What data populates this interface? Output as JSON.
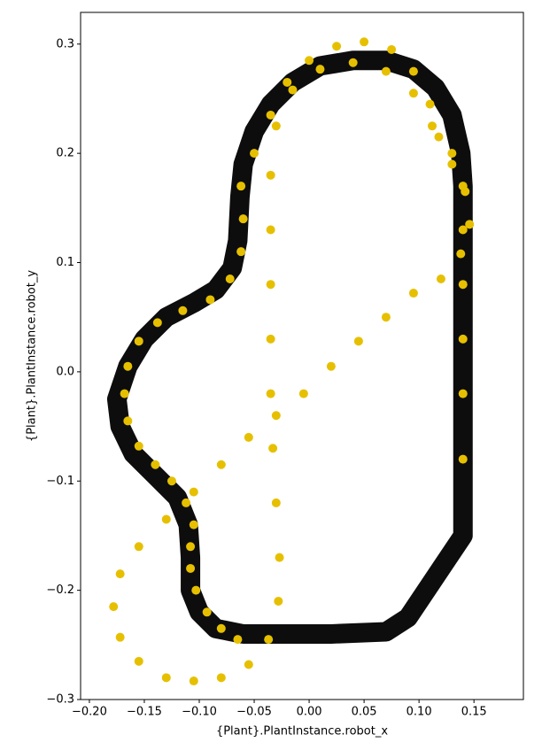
{
  "chart_data": {
    "type": "scatter",
    "xlabel": "{Plant}.PlantInstance.robot_x",
    "ylabel": "{Plant}.PlantInstance.robot_y",
    "xlim": [
      -0.208,
      0.195
    ],
    "ylim": [
      -0.3,
      0.329
    ],
    "xticks": [
      {
        "value": -0.2,
        "label": "−0.20"
      },
      {
        "value": -0.15,
        "label": "−0.15"
      },
      {
        "value": -0.1,
        "label": "−0.10"
      },
      {
        "value": -0.05,
        "label": "−0.05"
      },
      {
        "value": 0,
        "label": "0.00"
      },
      0.05,
      {
        "value": 0.1,
        "label": "0.10"
      },
      0.15
    ],
    "yticks": [
      {
        "value": -0.3,
        "label": "−0.3"
      },
      {
        "value": -0.2,
        "label": "−0.2"
      },
      {
        "value": -0.1,
        "label": "−0.1"
      },
      {
        "value": 0,
        "label": "0.0"
      },
      0.1,
      0.2,
      0.3
    ],
    "series": [
      {
        "type": "line",
        "color": "#000000",
        "x": [
          0.14,
          0.14,
          0.14,
          0.138,
          0.13,
          0.115,
          0.095,
          0.07,
          0.04,
          0.01,
          -0.015,
          -0.035,
          -0.05,
          -0.06,
          -0.063,
          -0.065,
          -0.07,
          -0.085,
          -0.105,
          -0.13,
          -0.15,
          -0.165,
          -0.175,
          -0.172,
          -0.16,
          -0.14,
          -0.12,
          -0.11,
          -0.108,
          -0.108,
          -0.1,
          -0.085,
          -0.06,
          -0.03,
          0.02,
          0.07,
          0.09,
          0.11,
          0.14
        ],
        "y": [
          -0.15,
          0.05,
          0.17,
          0.2,
          0.235,
          0.26,
          0.277,
          0.285,
          0.285,
          0.28,
          0.265,
          0.245,
          0.22,
          0.19,
          0.16,
          0.12,
          0.095,
          0.075,
          0.063,
          0.05,
          0.03,
          0.005,
          -0.025,
          -0.05,
          -0.075,
          -0.095,
          -0.115,
          -0.14,
          -0.17,
          -0.2,
          -0.22,
          -0.235,
          -0.24,
          -0.24,
          -0.24,
          -0.238,
          -0.225,
          -0.195,
          -0.15
        ]
      },
      {
        "type": "scatter",
        "color": "#e6c000",
        "x": [
          -0.065,
          -0.08,
          -0.093,
          -0.103,
          -0.108,
          -0.108,
          -0.105,
          -0.112,
          -0.125,
          -0.14,
          -0.155,
          -0.165,
          -0.168,
          -0.165,
          -0.155,
          -0.138,
          -0.115,
          -0.09,
          -0.072,
          -0.062,
          -0.06,
          -0.062,
          -0.05,
          -0.035,
          -0.02,
          0.0,
          0.025,
          0.05,
          0.075,
          0.095,
          0.11,
          0.118,
          0.13,
          0.142,
          0.146,
          0.138,
          0.12,
          0.095,
          0.07,
          0.045,
          0.02,
          -0.005,
          -0.03,
          -0.055,
          -0.08,
          -0.105,
          -0.13,
          -0.155,
          -0.172,
          -0.178,
          -0.172,
          -0.155,
          -0.13,
          -0.105,
          -0.08,
          -0.055,
          -0.037,
          -0.028,
          -0.027,
          -0.03,
          -0.033,
          -0.035,
          -0.035,
          -0.035,
          -0.035,
          -0.035,
          -0.03,
          -0.015,
          0.01,
          0.04,
          0.07,
          0.095,
          0.112,
          0.13,
          0.14,
          0.14,
          0.14,
          0.14,
          0.14,
          0.14
        ],
        "y": [
          -0.245,
          -0.235,
          -0.22,
          -0.2,
          -0.18,
          -0.16,
          -0.14,
          -0.12,
          -0.1,
          -0.085,
          -0.068,
          -0.045,
          -0.02,
          0.005,
          0.028,
          0.045,
          0.056,
          0.066,
          0.085,
          0.11,
          0.14,
          0.17,
          0.2,
          0.235,
          0.265,
          0.285,
          0.298,
          0.302,
          0.295,
          0.275,
          0.245,
          0.215,
          0.19,
          0.165,
          0.135,
          0.108,
          0.085,
          0.072,
          0.05,
          0.028,
          0.005,
          -0.02,
          -0.04,
          -0.06,
          -0.085,
          -0.11,
          -0.135,
          -0.16,
          -0.185,
          -0.215,
          -0.243,
          -0.265,
          -0.28,
          -0.283,
          -0.28,
          -0.268,
          -0.245,
          -0.21,
          -0.17,
          -0.12,
          -0.07,
          -0.02,
          0.03,
          0.08,
          0.13,
          0.18,
          0.225,
          0.258,
          0.277,
          0.283,
          0.275,
          0.255,
          0.225,
          0.2,
          0.17,
          0.13,
          0.08,
          0.03,
          -0.02,
          -0.08
        ]
      }
    ]
  }
}
